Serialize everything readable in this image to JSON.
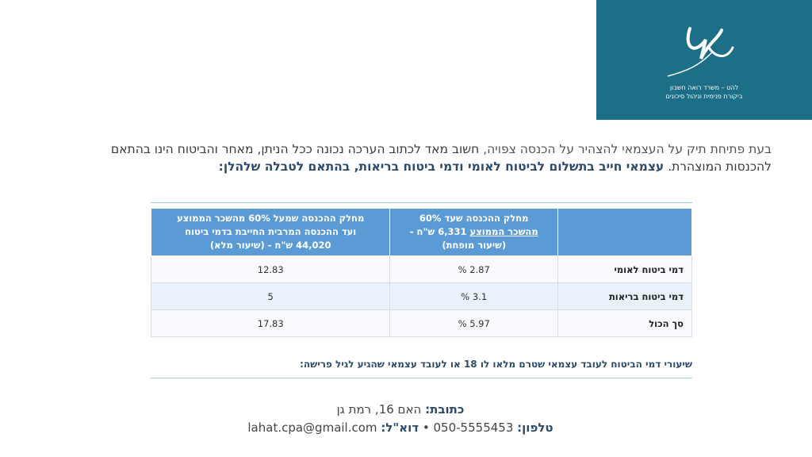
{
  "logo": {
    "line1": "להט – משרד רואה חשבון",
    "line2": "ביקורת פנימית וניהול סיכונים"
  },
  "intro": {
    "part1": "בעת פתיחת תיק על העצמאי להצהיר על הכנסה צפויה,",
    "part2": " חשוב מאד לכתוב הערכה נכונה ככל הניתן, מאחר והביטוח הינו בהתאם להכנסות המוצהרת. ",
    "bold": "עצמאי חייב בתשלום לביטוח לאומי ודמי ביטוח בריאות, בהתאם לטבלה שלהלן:"
  },
  "table": {
    "header_mid_line1": "מחלק ההכנסה שעד 60%",
    "header_mid_line2_underlined": "מהשכר הממוצע",
    "header_mid_line2_rest": " 6,331 ש\"ח -",
    "header_mid_line3": "(שיעור מופחת)",
    "header_left_line1": "מחלק ההכנסה שמעל 60% מהשכר הממוצע",
    "header_left_line2": "ועד ההכנסה המרבית החייבת בדמי ביטוח",
    "header_left_line3": "44,020 ש\"ח - (שיעור מלא)",
    "rows": [
      {
        "label": "דמי ביטוח לאומי",
        "reduced": "2.87 %",
        "full": "12.83"
      },
      {
        "label": "דמי ביטוח בריאות",
        "reduced": "3.1 %",
        "full": "5"
      },
      {
        "label": "סך הכול",
        "reduced": "5.97 %",
        "full": "17.83"
      }
    ]
  },
  "note": "שיעורי דמי הביטוח לעובד עצמאי שטרם מלאו לו 18 או לעובד עצמאי שהגיע לגיל פרישה:",
  "footer": {
    "address_label": "כתובת:",
    "address_value": " האם 16, רמת גן",
    "phone_label": "טלפון:",
    "phone_value": " 050-5555453 ",
    "email_label": "דוא\"ל:",
    "email_value": " lahat.cpa@gmail.com",
    "bullet": "•"
  }
}
